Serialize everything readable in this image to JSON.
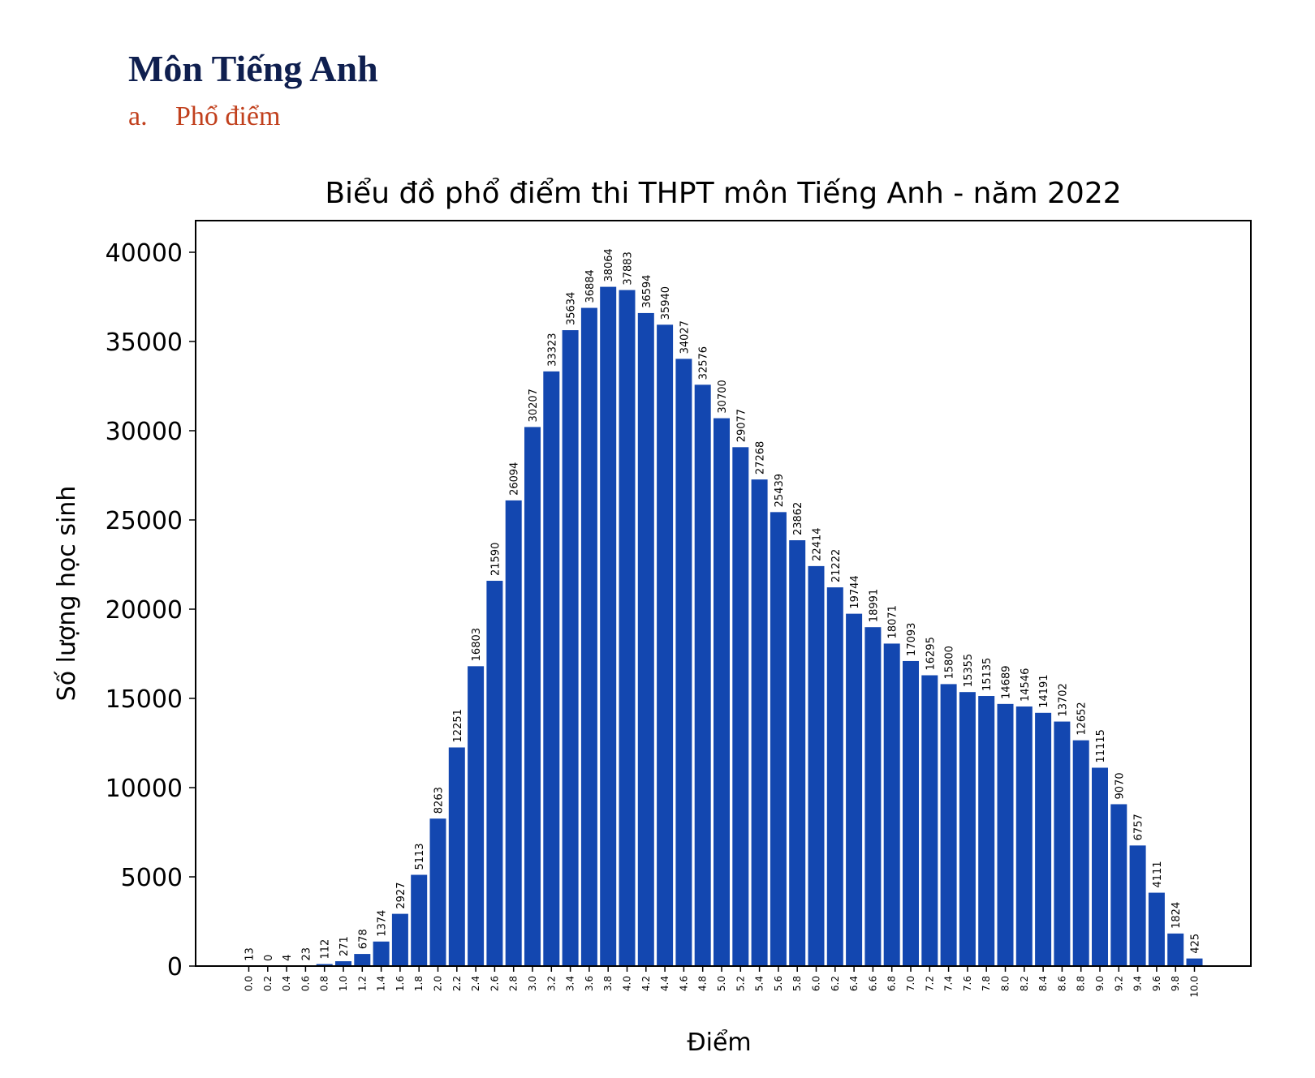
{
  "heading": {
    "title": "Môn Tiếng Anh",
    "section_marker": "a.",
    "section_title": "Phổ điểm"
  },
  "colors": {
    "bar": "#1347b0",
    "heading": "#0f1f4f",
    "section": "#c1401d"
  },
  "chart_data": {
    "type": "bar",
    "title": "Biểu đồ phổ điểm thi THPT môn Tiếng Anh - năm 2022",
    "xlabel": "Điểm",
    "ylabel": "Số lượng học sinh",
    "ylim": [
      0,
      40000
    ],
    "yticks": [
      "0",
      "5000",
      "10000",
      "15000",
      "20000",
      "25000",
      "30000",
      "35000",
      "40000"
    ],
    "categories": [
      "0.0",
      "0.2",
      "0.4",
      "0.6",
      "0.8",
      "1.0",
      "1.2",
      "1.4",
      "1.6",
      "1.8",
      "2.0",
      "2.2",
      "2.4",
      "2.6",
      "2.8",
      "3.0",
      "3.2",
      "3.4",
      "3.6",
      "3.8",
      "4.0",
      "4.2",
      "4.4",
      "4.6",
      "4.8",
      "5.0",
      "5.2",
      "5.4",
      "5.6",
      "5.8",
      "6.0",
      "6.2",
      "6.4",
      "6.6",
      "6.8",
      "7.0",
      "7.2",
      "7.4",
      "7.6",
      "7.8",
      "8.0",
      "8.2",
      "8.4",
      "8.6",
      "8.8",
      "9.0",
      "9.2",
      "9.4",
      "9.6",
      "9.8",
      "10.0"
    ],
    "values": [
      13,
      0,
      4,
      23,
      112,
      271,
      678,
      1374,
      2927,
      5113,
      8263,
      12251,
      16803,
      21590,
      26094,
      30207,
      33323,
      35634,
      36884,
      38064,
      37883,
      36594,
      35940,
      34027,
      32576,
      30700,
      29077,
      27268,
      25439,
      23862,
      22414,
      21222,
      19744,
      18991,
      18071,
      17093,
      16295,
      15800,
      15355,
      15135,
      14689,
      14546,
      14191,
      13702,
      12652,
      11115,
      9070,
      6757,
      4111,
      1824,
      425
    ],
    "grid": false,
    "legend": "none"
  }
}
